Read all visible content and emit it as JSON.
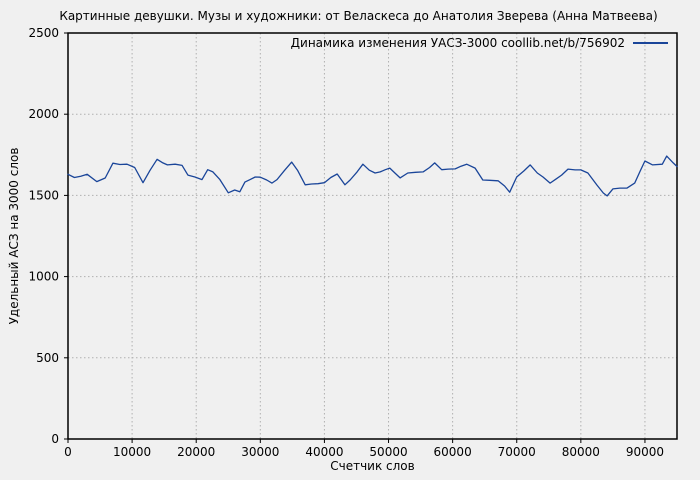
{
  "page": {
    "background_color": "#f0f0f0",
    "text_color": "#000000"
  },
  "chart_data": {
    "type": "line",
    "title": "Картинные девушки. Музы и художники: от Веласкеса до Анатолия Зверева (Анна Матвеева)",
    "xlabel": "Счетчик слов",
    "ylabel": "Удельный АСЗ на 3000 слов",
    "legend": "Динамика изменения УАСЗ-3000 coollib.net/b/756902",
    "legend_position": "top-right-inside",
    "grid": true,
    "xlim": [
      0,
      95000
    ],
    "ylim": [
      0,
      2500
    ],
    "x_ticks": [
      0,
      10000,
      20000,
      30000,
      40000,
      50000,
      60000,
      70000,
      80000,
      90000
    ],
    "y_ticks": [
      0,
      500,
      1000,
      1500,
      2000,
      2500
    ],
    "line_color": "#1a4599",
    "grid_color": "#b0b0b0",
    "border_color": "#000000",
    "series": [
      {
        "name": "Динамика изменения УАСЗ-3000 coollib.net/b/756902",
        "points": [
          [
            0,
            1630
          ],
          [
            1000,
            1610
          ],
          [
            2000,
            1618
          ],
          [
            3000,
            1630
          ],
          [
            4500,
            1585
          ],
          [
            5800,
            1607
          ],
          [
            7000,
            1698
          ],
          [
            8100,
            1690
          ],
          [
            9200,
            1692
          ],
          [
            10400,
            1672
          ],
          [
            11700,
            1578
          ],
          [
            12800,
            1655
          ],
          [
            13900,
            1722
          ],
          [
            14800,
            1700
          ],
          [
            15500,
            1688
          ],
          [
            16700,
            1692
          ],
          [
            17800,
            1685
          ],
          [
            18700,
            1625
          ],
          [
            19800,
            1613
          ],
          [
            20900,
            1597
          ],
          [
            21800,
            1658
          ],
          [
            22600,
            1645
          ],
          [
            23700,
            1597
          ],
          [
            25000,
            1516
          ],
          [
            26000,
            1533
          ],
          [
            26800,
            1522
          ],
          [
            27600,
            1582
          ],
          [
            28400,
            1597
          ],
          [
            29200,
            1613
          ],
          [
            30000,
            1612
          ],
          [
            31000,
            1595
          ],
          [
            31800,
            1576
          ],
          [
            32600,
            1597
          ],
          [
            33800,
            1655
          ],
          [
            34900,
            1705
          ],
          [
            35800,
            1655
          ],
          [
            37000,
            1565
          ],
          [
            38000,
            1570
          ],
          [
            39000,
            1572
          ],
          [
            40000,
            1578
          ],
          [
            41000,
            1610
          ],
          [
            42000,
            1632
          ],
          [
            43200,
            1565
          ],
          [
            44000,
            1595
          ],
          [
            45100,
            1645
          ],
          [
            46000,
            1692
          ],
          [
            47000,
            1655
          ],
          [
            47900,
            1638
          ],
          [
            48700,
            1645
          ],
          [
            49500,
            1658
          ],
          [
            50200,
            1668
          ],
          [
            51000,
            1638
          ],
          [
            51800,
            1608
          ],
          [
            53000,
            1638
          ],
          [
            54200,
            1642
          ],
          [
            55400,
            1645
          ],
          [
            56400,
            1672
          ],
          [
            57200,
            1700
          ],
          [
            58300,
            1658
          ],
          [
            59300,
            1662
          ],
          [
            60400,
            1663
          ],
          [
            61300,
            1680
          ],
          [
            62200,
            1692
          ],
          [
            63500,
            1668
          ],
          [
            64700,
            1595
          ],
          [
            65800,
            1593
          ],
          [
            67100,
            1590
          ],
          [
            68100,
            1558
          ],
          [
            68900,
            1520
          ],
          [
            70000,
            1613
          ],
          [
            71100,
            1650
          ],
          [
            72100,
            1688
          ],
          [
            73200,
            1638
          ],
          [
            74100,
            1613
          ],
          [
            75200,
            1576
          ],
          [
            76100,
            1600
          ],
          [
            77000,
            1625
          ],
          [
            78000,
            1662
          ],
          [
            79100,
            1657
          ],
          [
            80000,
            1657
          ],
          [
            81100,
            1638
          ],
          [
            82500,
            1564
          ],
          [
            83500,
            1515
          ],
          [
            84100,
            1497
          ],
          [
            85000,
            1540
          ],
          [
            86100,
            1545
          ],
          [
            87200,
            1545
          ],
          [
            88400,
            1576
          ],
          [
            89200,
            1645
          ],
          [
            90000,
            1712
          ],
          [
            91200,
            1688
          ],
          [
            92700,
            1692
          ],
          [
            93400,
            1742
          ],
          [
            94400,
            1700
          ],
          [
            95000,
            1678
          ]
        ]
      }
    ]
  }
}
